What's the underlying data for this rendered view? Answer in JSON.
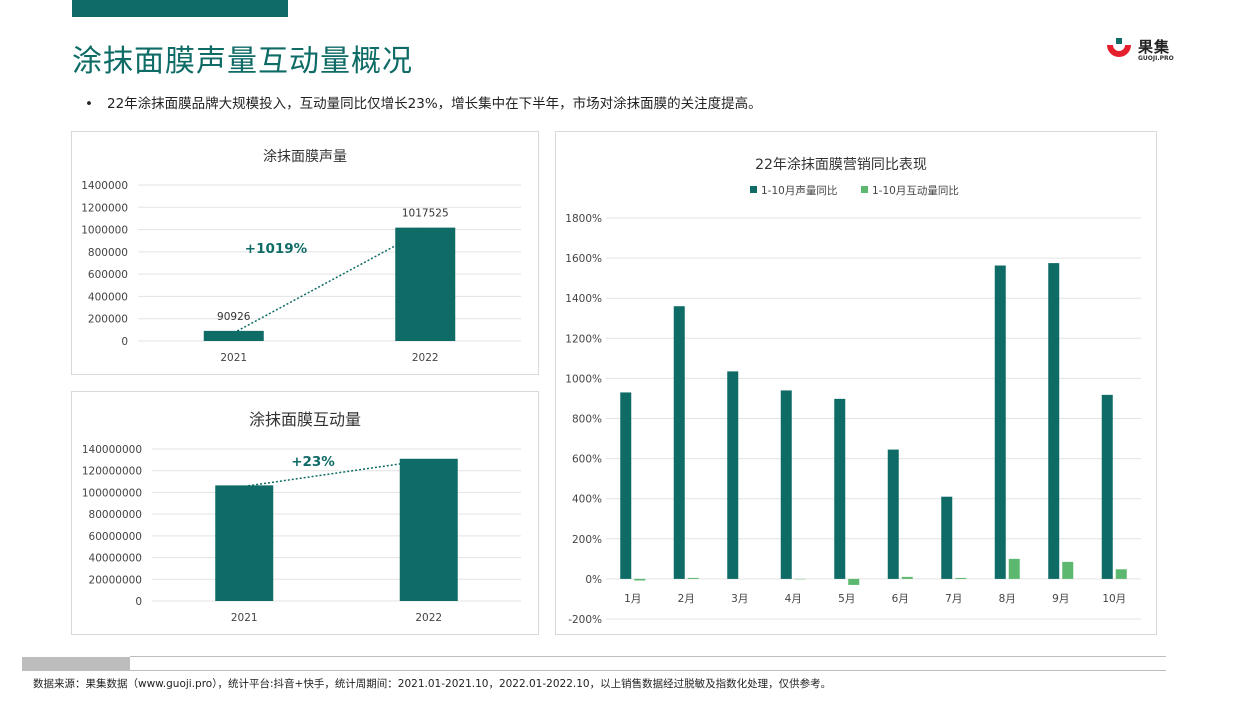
{
  "page": {
    "title": "涂抹面膜声量互动量概况",
    "bullet": "22年涂抹面膜品牌大规模投入，互动量同比仅增长23%，增长集中在下半年，市场对涂抹面膜的关注度提高。",
    "footnote": "数据来源：果集数据（www.guoji.pro），统计平台:抖音+快手，统计周期间：2021.01-2021.10，2022.01-2022.10，以上销售数据经过脱敏及指数化处理，仅供参考。"
  },
  "logo": {
    "name": "果集",
    "sub": "GUOJI.PRO",
    "color": "#e5202e"
  },
  "colors": {
    "brand": "#0e6b66",
    "bar_dark": "#0e6b66",
    "bar_light": "#5cb86f"
  },
  "chart_data": [
    {
      "type": "bar",
      "title": "涂抹面膜声量",
      "categories": [
        "2021",
        "2022"
      ],
      "values": [
        90926,
        1017525
      ],
      "ylim": [
        0,
        1400000
      ],
      "yticks": [
        "0",
        "200000",
        "400000",
        "600000",
        "800000",
        "1000000",
        "1200000",
        "1400000"
      ],
      "data_labels": [
        "90926",
        "1017525"
      ],
      "annotation": "+1019%",
      "grid": true
    },
    {
      "type": "bar",
      "title": "涂抹面膜互动量",
      "categories": [
        "2021",
        "2022"
      ],
      "values": [
        106500000,
        131000000
      ],
      "ylim": [
        0,
        140000000
      ],
      "yticks": [
        "0",
        "20000000",
        "40000000",
        "60000000",
        "80000000",
        "100000000",
        "120000000",
        "140000000"
      ],
      "annotation": "+23%",
      "grid": true
    },
    {
      "type": "bar",
      "title": "22年涂抹面膜营销同比表现",
      "categories": [
        "1月",
        "2月",
        "3月",
        "4月",
        "5月",
        "6月",
        "7月",
        "8月",
        "9月",
        "10月"
      ],
      "series": [
        {
          "name": "1-10月声量同比",
          "values": [
            930,
            1360,
            1035,
            940,
            898,
            645,
            410,
            1563,
            1575,
            918
          ]
        },
        {
          "name": "1-10月互动量同比",
          "values": [
            -8,
            5,
            0,
            -2,
            -30,
            10,
            5,
            100,
            85,
            48
          ]
        }
      ],
      "ylim": [
        -200,
        1800
      ],
      "yticks": [
        "-200%",
        "0%",
        "200%",
        "400%",
        "600%",
        "800%",
        "1000%",
        "1200%",
        "1400%",
        "1600%",
        "1800%"
      ],
      "legend_position": "top",
      "grid": true
    }
  ]
}
